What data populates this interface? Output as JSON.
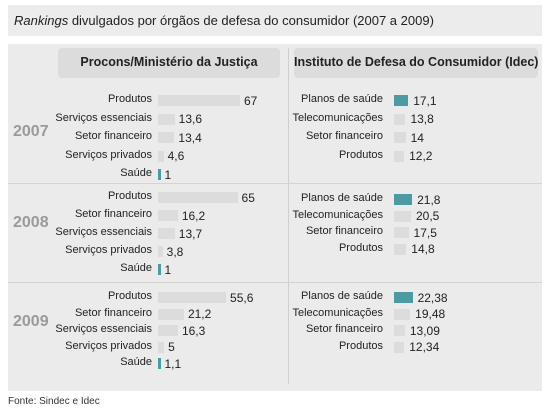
{
  "title": {
    "italic": "Rankings",
    "rest": " divulgados por órgãos de defesa do consumidor (2007 a 2009)"
  },
  "source": "Fonte: Sindec e Idec",
  "colors": {
    "bar": "#dcdcdc",
    "highlight": "#4d9aa2"
  },
  "chart_data": [
    {
      "type": "bar",
      "orientation": "horizontal",
      "title": "Procons/Ministério da Justiça",
      "groups": [
        {
          "year": "2007",
          "categories": [
            "Produtos",
            "Serviços essenciais",
            "Setor financeiro",
            "Serviços privados",
            "Saúde"
          ],
          "values": [
            67,
            13.6,
            13.4,
            4.6,
            1
          ],
          "labels": [
            "67",
            "13,6",
            "13,4",
            "4,6",
            "1"
          ],
          "highlight": "Saúde"
        },
        {
          "year": "2008",
          "categories": [
            "Produtos",
            "Setor financeiro",
            "Serviços essenciais",
            "Serviços privados",
            "Saúde"
          ],
          "values": [
            65,
            16.2,
            13.7,
            3.8,
            1
          ],
          "labels": [
            "65",
            "16,2",
            "13,7",
            "3,8",
            "1"
          ],
          "highlight": "Saúde"
        },
        {
          "year": "2009",
          "categories": [
            "Produtos",
            "Setor financeiro",
            "Serviços essenciais",
            "Serviços privados",
            "Saúde"
          ],
          "values": [
            55.6,
            21.2,
            16.3,
            5,
            1.1
          ],
          "labels": [
            "55,6",
            "21,2",
            "16,3",
            "5",
            "1,1"
          ],
          "highlight": "Saúde"
        }
      ]
    },
    {
      "type": "bar",
      "orientation": "horizontal",
      "title": "Instituto de Defesa do Consumidor (Idec)",
      "groups": [
        {
          "year": "2007",
          "categories": [
            "Planos de saúde",
            "Telecomunicações",
            "Setor financeiro",
            "Produtos"
          ],
          "values": [
            17.1,
            13.8,
            14,
            12.2
          ],
          "labels": [
            "17,1",
            "13,8",
            "14",
            "12,2"
          ],
          "highlight": "Planos de saúde"
        },
        {
          "year": "2008",
          "categories": [
            "Planos de saúde",
            "Telecomunicações",
            "Setor financeiro",
            "Produtos"
          ],
          "values": [
            21.8,
            20.5,
            17.5,
            14.8
          ],
          "labels": [
            "21,8",
            "20,5",
            "17,5",
            "14,8"
          ],
          "highlight": "Planos de saúde"
        },
        {
          "year": "2009",
          "categories": [
            "Planos de saúde",
            "Telecomunicações",
            "Setor financeiro",
            "Produtos"
          ],
          "values": [
            22.38,
            19.48,
            13.09,
            12.34
          ],
          "labels": [
            "22,38",
            "19,48",
            "13,09",
            "12,34"
          ],
          "highlight": "Planos de saúde"
        }
      ]
    }
  ]
}
